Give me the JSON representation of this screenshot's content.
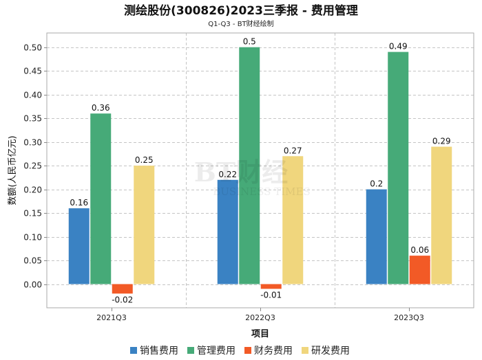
{
  "chart_data": {
    "type": "bar",
    "title": "测绘股份(300826)2023三季报 - 费用管理",
    "subtitle": "Q1-Q3 - BT财经绘制",
    "xlabel": "项目",
    "ylabel": "数额(人民币亿元)",
    "categories": [
      "2021Q3",
      "2022Q3",
      "2023Q3"
    ],
    "series": [
      {
        "name": "销售费用",
        "color": "#3a82c3",
        "values": [
          0.16,
          0.22,
          0.2
        ]
      },
      {
        "name": "管理费用",
        "color": "#46aa78",
        "values": [
          0.36,
          0.5,
          0.49
        ]
      },
      {
        "name": "财务费用",
        "color": "#f25a26",
        "values": [
          -0.02,
          -0.01,
          0.06
        ]
      },
      {
        "name": "研发费用",
        "color": "#f0d67d",
        "values": [
          0.25,
          0.27,
          0.29
        ]
      }
    ],
    "ytick_labels": [
      "0.00",
      "0.05",
      "0.10",
      "0.15",
      "0.20",
      "0.25",
      "0.30",
      "0.35",
      "0.40",
      "0.45",
      "0.50"
    ],
    "ylim": [
      -0.05,
      0.53
    ],
    "grid": true,
    "legend": "bottom",
    "data_labels": true
  },
  "watermark": {
    "brand": "BT财经",
    "tagline": "BUSINESS TIMES"
  }
}
